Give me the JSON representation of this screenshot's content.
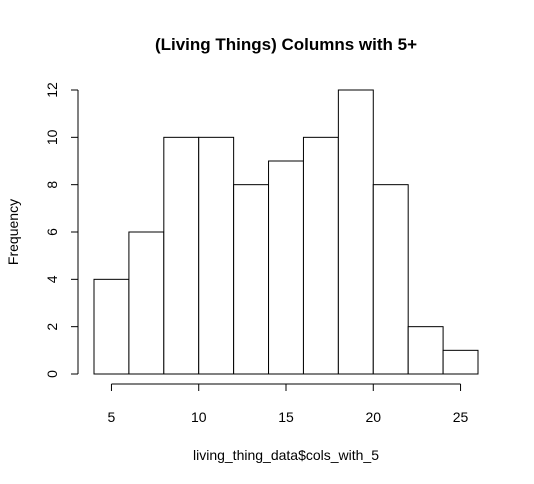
{
  "chart_data": {
    "type": "bar",
    "title": "(Living Things) Columns with 5+",
    "xlabel": "living_thing_data$cols_with_5",
    "ylabel": "Frequency",
    "bins": [
      {
        "start": 4,
        "end": 6,
        "count": 4
      },
      {
        "start": 6,
        "end": 8,
        "count": 6
      },
      {
        "start": 8,
        "end": 10,
        "count": 10
      },
      {
        "start": 10,
        "end": 12,
        "count": 10
      },
      {
        "start": 12,
        "end": 14,
        "count": 8
      },
      {
        "start": 14,
        "end": 16,
        "count": 9
      },
      {
        "start": 16,
        "end": 18,
        "count": 10
      },
      {
        "start": 18,
        "end": 20,
        "count": 12
      },
      {
        "start": 20,
        "end": 22,
        "count": 8
      },
      {
        "start": 22,
        "end": 24,
        "count": 2
      },
      {
        "start": 24,
        "end": 26,
        "count": 1
      }
    ],
    "xticks": [
      5,
      10,
      15,
      20,
      25
    ],
    "yticks": [
      0,
      2,
      4,
      6,
      8,
      10,
      12
    ],
    "xlim": [
      4,
      26
    ],
    "ylim": [
      0,
      12
    ],
    "grid": false
  }
}
